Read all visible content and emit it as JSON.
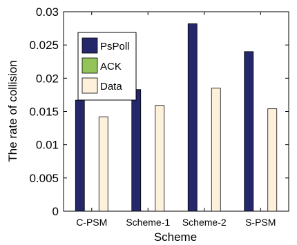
{
  "chart_data": {
    "type": "bar",
    "title": "",
    "xlabel": "Scheme",
    "ylabel": "The rate of collision",
    "categories": [
      "C-PSM",
      "Scheme-1",
      "Scheme-2",
      "S-PSM"
    ],
    "ylim": [
      0,
      0.03
    ],
    "yticks": [
      0,
      0.005,
      0.01,
      0.015,
      0.02,
      0.025,
      0.03
    ],
    "ytick_labels": [
      "0",
      "0.005",
      "0.01",
      "0.015",
      "0.02",
      "0.025",
      "0.03"
    ],
    "grid": false,
    "legend_position": "top-left",
    "series": [
      {
        "name": "PsPoll",
        "color": "#25276b",
        "values": [
          0.0167,
          0.0183,
          0.0282,
          0.024
        ]
      },
      {
        "name": "ACK",
        "color": "#92c45a",
        "values": [
          0,
          0,
          0,
          0
        ]
      },
      {
        "name": "Data",
        "color": "#fdf1dc",
        "values": [
          0.0142,
          0.0159,
          0.0185,
          0.0154
        ]
      }
    ]
  }
}
